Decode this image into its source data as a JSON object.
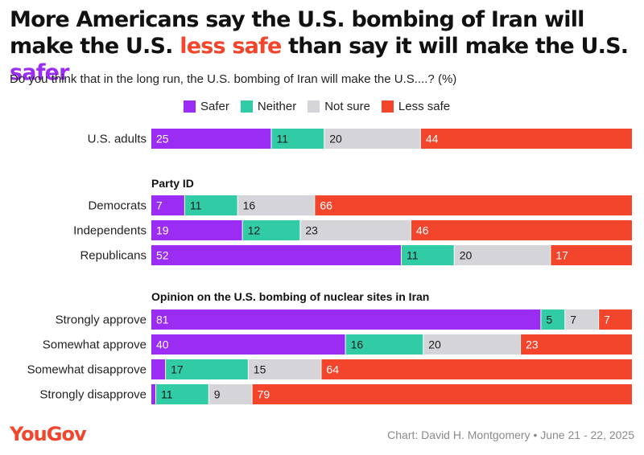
{
  "title": {
    "part1": "More Americans say the U.S. bombing of Iran will make the U.S. ",
    "less_safe": "less safe",
    "part2": " than say it will make the U.S. ",
    "safer": "safer"
  },
  "subtitle": "Do you think that in the long run, the U.S. bombing of Iran will make the U.S....? (%)",
  "legend": [
    {
      "label": "Safer",
      "color": "#9b2cf3"
    },
    {
      "label": "Neither",
      "color": "#31cba6"
    },
    {
      "label": "Not sure",
      "color": "#d4d4d9"
    },
    {
      "label": "Less safe",
      "color": "#f2452c"
    }
  ],
  "footer": {
    "logo": "YouGov",
    "credit": "Chart: David H. Montgomery • June 21 - 22, 2025"
  },
  "chart_data": {
    "type": "bar",
    "stacked": true,
    "orientation": "horizontal",
    "series_names": [
      "Safer",
      "Neither",
      "Not sure",
      "Less safe"
    ],
    "groups": [
      {
        "heading": "",
        "rows": [
          {
            "label": "U.S. adults",
            "values": [
              25,
              11,
              20,
              44
            ]
          }
        ]
      },
      {
        "heading": "Party ID",
        "rows": [
          {
            "label": "Democrats",
            "values": [
              7,
              11,
              16,
              66
            ]
          },
          {
            "label": "Independents",
            "values": [
              19,
              12,
              23,
              46
            ]
          },
          {
            "label": "Republicans",
            "values": [
              52,
              11,
              20,
              17
            ]
          }
        ]
      },
      {
        "heading": "Opinion on the U.S. bombing of nuclear sites in Iran",
        "rows": [
          {
            "label": "Strongly approve",
            "values": [
              81,
              5,
              7,
              7
            ]
          },
          {
            "label": "Somewhat approve",
            "values": [
              40,
              16,
              20,
              23
            ]
          },
          {
            "label": "Somewhat disapprove",
            "values": [
              3,
              17,
              15,
              64
            ]
          },
          {
            "label": "Strongly disapprove",
            "values": [
              1,
              11,
              9,
              79
            ]
          }
        ]
      }
    ],
    "value_labels_hidden_below": 3
  }
}
